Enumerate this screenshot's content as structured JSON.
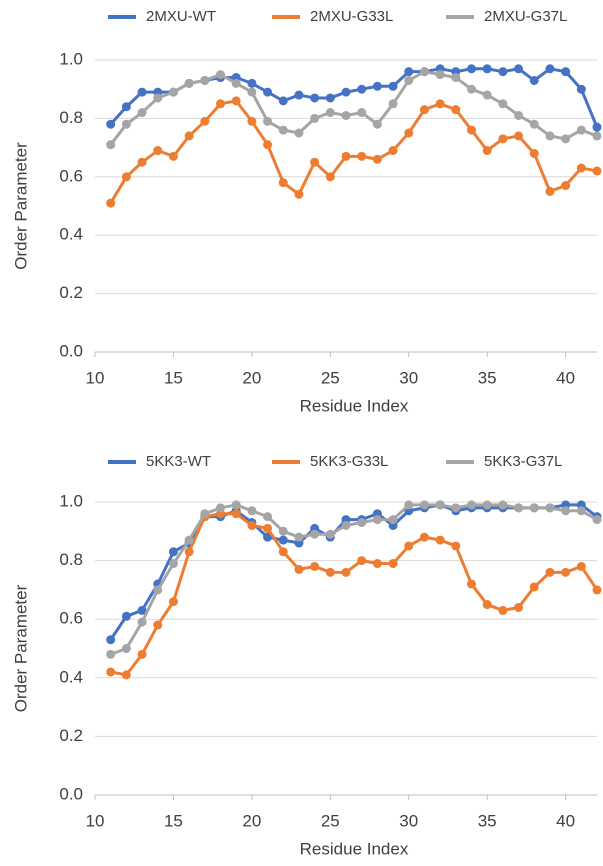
{
  "chart_data": [
    {
      "type": "line",
      "x_label": "Residue Index",
      "y_label": "Order Parameter",
      "x": [
        11,
        12,
        13,
        14,
        15,
        16,
        17,
        18,
        19,
        20,
        21,
        22,
        23,
        24,
        25,
        26,
        27,
        28,
        29,
        30,
        31,
        32,
        33,
        34,
        35,
        36,
        37,
        38,
        39,
        40,
        41,
        42
      ],
      "xlim": [
        10,
        42
      ],
      "xticks": [
        10,
        15,
        20,
        25,
        30,
        35,
        40
      ],
      "ylim": [
        0,
        1
      ],
      "yticks": [
        {
          "value": 0,
          "label": "0.0"
        },
        0.2,
        0.4,
        0.6,
        0.8,
        {
          "value": 1,
          "label": "1.0"
        }
      ],
      "grid": true,
      "series": [
        {
          "name": "2MXU-WT",
          "color": "#4472c4",
          "values": [
            0.78,
            0.84,
            0.89,
            0.89,
            0.89,
            0.92,
            0.93,
            0.94,
            0.94,
            0.92,
            0.89,
            0.86,
            0.88,
            0.87,
            0.87,
            0.89,
            0.9,
            0.91,
            0.91,
            0.96,
            0.96,
            0.97,
            0.96,
            0.97,
            0.97,
            0.96,
            0.97,
            0.93,
            0.97,
            0.96,
            0.9,
            0.77
          ]
        },
        {
          "name": "2MXU-G33L",
          "color": "#ed7d31",
          "values": [
            0.51,
            0.6,
            0.65,
            0.69,
            0.67,
            0.74,
            0.79,
            0.85,
            0.86,
            0.79,
            0.71,
            0.58,
            0.54,
            0.65,
            0.6,
            0.67,
            0.67,
            0.66,
            0.69,
            0.75,
            0.83,
            0.85,
            0.83,
            0.76,
            0.69,
            0.73,
            0.74,
            0.68,
            0.55,
            0.57,
            0.63,
            0.62
          ]
        },
        {
          "name": "2MXU-G37L",
          "color": "#a5a5a5",
          "values": [
            0.71,
            0.78,
            0.82,
            0.87,
            0.89,
            0.92,
            0.93,
            0.95,
            0.92,
            0.89,
            0.79,
            0.76,
            0.75,
            0.8,
            0.82,
            0.81,
            0.82,
            0.78,
            0.85,
            0.93,
            0.96,
            0.95,
            0.94,
            0.9,
            0.88,
            0.85,
            0.81,
            0.78,
            0.74,
            0.73,
            0.76,
            0.74
          ]
        }
      ]
    },
    {
      "type": "line",
      "x_label": "Residue Index",
      "y_label": "Order Parameter",
      "x": [
        11,
        12,
        13,
        14,
        15,
        16,
        17,
        18,
        19,
        20,
        21,
        22,
        23,
        24,
        25,
        26,
        27,
        28,
        29,
        30,
        31,
        32,
        33,
        34,
        35,
        36,
        37,
        38,
        39,
        40,
        41,
        42
      ],
      "xlim": [
        10,
        42
      ],
      "xticks": [
        10,
        15,
        20,
        25,
        30,
        35,
        40
      ],
      "ylim": [
        0,
        1
      ],
      "yticks": [
        {
          "value": 0,
          "label": "0.0"
        },
        0.2,
        0.4,
        0.6,
        0.8,
        {
          "value": 1,
          "label": "1.0"
        }
      ],
      "grid": true,
      "series": [
        {
          "name": "5KK3-WT",
          "color": "#4472c4",
          "values": [
            0.53,
            0.61,
            0.63,
            0.72,
            0.83,
            0.86,
            0.95,
            0.95,
            0.97,
            0.93,
            0.88,
            0.87,
            0.86,
            0.91,
            0.88,
            0.94,
            0.94,
            0.96,
            0.92,
            0.97,
            0.98,
            0.99,
            0.97,
            0.98,
            0.98,
            0.98,
            0.98,
            0.98,
            0.98,
            0.99,
            0.99,
            0.95
          ]
        },
        {
          "name": "5KK3-G33L",
          "color": "#ed7d31",
          "values": [
            0.42,
            0.41,
            0.48,
            0.58,
            0.66,
            0.83,
            0.95,
            0.96,
            0.96,
            0.92,
            0.91,
            0.83,
            0.77,
            0.78,
            0.76,
            0.76,
            0.8,
            0.79,
            0.79,
            0.85,
            0.88,
            0.87,
            0.85,
            0.72,
            0.65,
            0.63,
            0.64,
            0.71,
            0.76,
            0.76,
            0.78,
            0.7
          ]
        },
        {
          "name": "5KK3-G37L",
          "color": "#a5a5a5",
          "values": [
            0.48,
            0.5,
            0.59,
            0.7,
            0.79,
            0.87,
            0.96,
            0.98,
            0.99,
            0.97,
            0.95,
            0.9,
            0.88,
            0.89,
            0.89,
            0.92,
            0.93,
            0.94,
            0.94,
            0.99,
            0.99,
            0.99,
            0.98,
            0.99,
            0.99,
            0.99,
            0.98,
            0.98,
            0.98,
            0.97,
            0.97,
            0.94
          ]
        }
      ]
    }
  ]
}
